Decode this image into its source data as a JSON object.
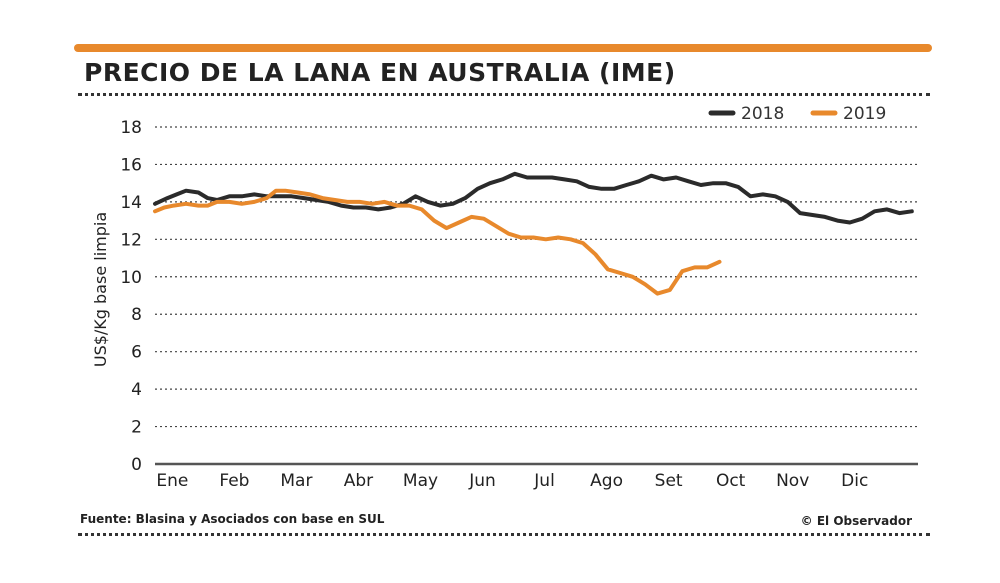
{
  "header": {
    "title": "PRECIO DE LA LANA EN AUSTRALIA (IME)"
  },
  "footer": {
    "source": "Fuente: Blasina y Asociados con base en SUL",
    "credit": "© El Observador"
  },
  "colors": {
    "accent": "#e8892c",
    "series_2018": "#2b2b2b",
    "series_2019": "#e8892c",
    "grid": "#444444"
  },
  "chart_data": {
    "type": "line",
    "title": "PRECIO DE LA LANA EN AUSTRALIA (IME)",
    "xlabel": "",
    "ylabel": "US$/Kg base limpia",
    "ylim": [
      0,
      18
    ],
    "yticks": [
      "0",
      "2",
      "4",
      "6",
      "8",
      "10",
      "12",
      "14",
      "16",
      "18"
    ],
    "categories": [
      "Ene",
      "Feb",
      "Mar",
      "Abr",
      "May",
      "Jun",
      "Jul",
      "Ago",
      "Set",
      "Oct",
      "Nov",
      "Dic"
    ],
    "x_unit": "month (0 = start of Ene, 12 = end of Dic)",
    "xlim": [
      0,
      12.3
    ],
    "grid": true,
    "legend_position": "top-right",
    "series": [
      {
        "name": "2018",
        "color": "#2b2b2b",
        "x": [
          0,
          0.2,
          0.35,
          0.5,
          0.7,
          0.85,
          1.0,
          1.2,
          1.4,
          1.6,
          1.8,
          2.0,
          2.2,
          2.4,
          2.6,
          2.8,
          3.0,
          3.2,
          3.4,
          3.6,
          3.8,
          4.0,
          4.2,
          4.4,
          4.6,
          4.8,
          5.0,
          5.2,
          5.4,
          5.6,
          5.8,
          6.0,
          6.2,
          6.4,
          6.6,
          6.8,
          7.0,
          7.2,
          7.4,
          7.6,
          7.8,
          8.0,
          8.2,
          8.4,
          8.6,
          8.8,
          9.0,
          9.2,
          9.4,
          9.6,
          9.8,
          10.0,
          10.2,
          10.4,
          10.6,
          10.8,
          11.0,
          11.2,
          11.4,
          11.6,
          11.8,
          12.0,
          12.2
        ],
        "values": [
          13.9,
          14.2,
          14.4,
          14.6,
          14.5,
          14.2,
          14.1,
          14.3,
          14.3,
          14.4,
          14.3,
          14.3,
          14.3,
          14.2,
          14.1,
          14.0,
          13.8,
          13.7,
          13.7,
          13.6,
          13.7,
          13.9,
          14.3,
          14.0,
          13.8,
          13.9,
          14.2,
          14.7,
          15.0,
          15.2,
          15.5,
          15.3,
          15.3,
          15.3,
          15.2,
          15.1,
          14.8,
          14.7,
          14.7,
          14.9,
          15.1,
          15.4,
          15.2,
          15.3,
          15.1,
          14.9,
          15.0,
          15.0,
          14.8,
          14.3,
          14.4,
          14.3,
          14.0,
          13.4,
          13.3,
          13.2,
          13.0,
          12.9,
          13.1,
          13.5,
          13.6,
          13.4,
          13.5
        ]
      },
      {
        "name": "2019",
        "color": "#e8892c",
        "x": [
          0,
          0.15,
          0.3,
          0.5,
          0.7,
          0.85,
          1.0,
          1.2,
          1.4,
          1.6,
          1.8,
          1.95,
          2.1,
          2.3,
          2.5,
          2.7,
          2.9,
          3.1,
          3.3,
          3.5,
          3.7,
          3.9,
          4.1,
          4.3,
          4.5,
          4.7,
          4.9,
          5.1,
          5.3,
          5.5,
          5.7,
          5.9,
          6.1,
          6.3,
          6.5,
          6.7,
          6.9,
          7.1,
          7.3,
          7.5,
          7.7,
          7.9,
          8.1,
          8.3,
          8.5,
          8.7,
          8.9,
          9.1
        ],
        "values": [
          13.5,
          13.7,
          13.8,
          13.9,
          13.8,
          13.8,
          14.0,
          14.0,
          13.9,
          14.0,
          14.2,
          14.6,
          14.6,
          14.5,
          14.4,
          14.2,
          14.1,
          14.0,
          14.0,
          13.9,
          14.0,
          13.8,
          13.8,
          13.6,
          13.0,
          12.6,
          12.9,
          13.2,
          13.1,
          12.7,
          12.3,
          12.1,
          12.1,
          12.0,
          12.1,
          12.0,
          11.8,
          11.2,
          10.4,
          10.2,
          10.0,
          9.6,
          9.1,
          9.3,
          10.3,
          10.5,
          10.5,
          10.8
        ]
      }
    ]
  }
}
